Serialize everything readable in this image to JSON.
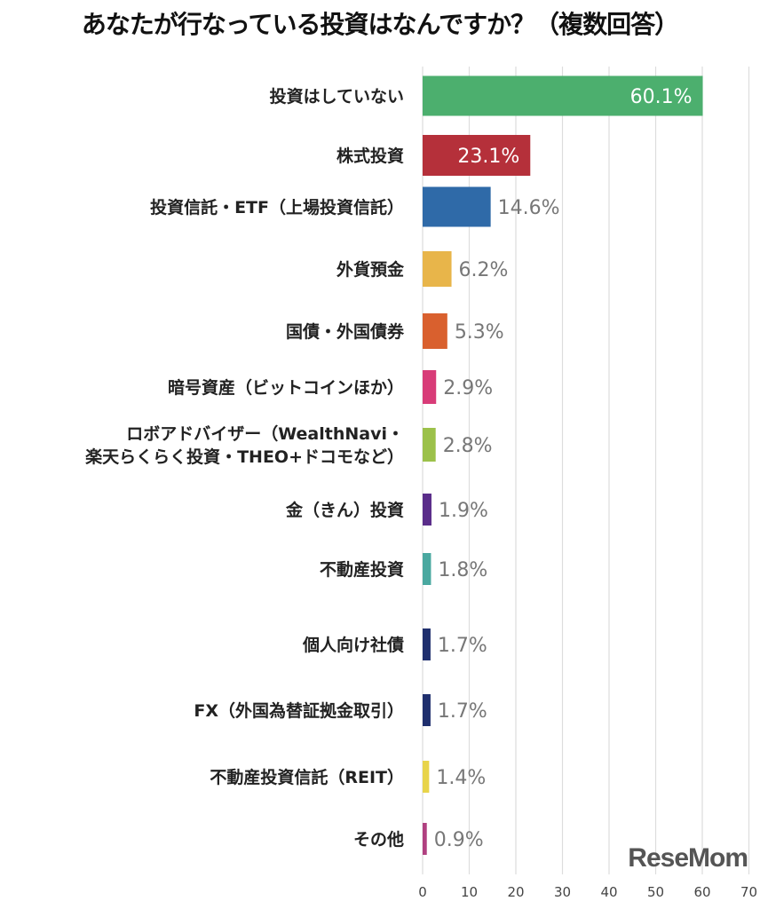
{
  "chart_data": {
    "type": "bar",
    "orientation": "horizontal",
    "title": "あなたが行なっている投資はなんですか？（複数回答）",
    "categories": [
      "投資はしていない",
      "株式投資",
      "投資信託・ETF（上場投資信託）",
      "外貨預金",
      "国債・外国債券",
      "暗号資産（ビットコインほか）",
      "ロボアドバイザー（WealthNavi・\n楽天らくらく投資・THEO+ドコモなど）",
      "金（きん）投資",
      "不動産投資",
      "個人向け社債",
      "FX（外国為替証拠金取引）",
      "不動産投資信託（REIT）",
      "その他"
    ],
    "values": [
      60.1,
      23.1,
      14.6,
      6.2,
      5.3,
      2.9,
      2.8,
      1.9,
      1.8,
      1.7,
      1.7,
      1.4,
      0.9
    ],
    "value_labels": [
      "60.1%",
      "23.1%",
      "14.6%",
      "6.2%",
      "5.3%",
      "2.9%",
      "2.8%",
      "1.9%",
      "1.8%",
      "1.7%",
      "1.7%",
      "1.4%",
      "0.9%"
    ],
    "colors": [
      "#4caf6e",
      "#b5303a",
      "#2f6aa8",
      "#e8b54a",
      "#d9602e",
      "#d83c78",
      "#9cc14a",
      "#5a2d8a",
      "#4aa8a0",
      "#1f2f6e",
      "#1f2f6e",
      "#e8d44a",
      "#b04080"
    ],
    "xticks": [
      0,
      10,
      20,
      30,
      40,
      50,
      60,
      70
    ],
    "xlim": [
      0,
      70
    ],
    "grid": true
  },
  "watermark": "ReseMom"
}
